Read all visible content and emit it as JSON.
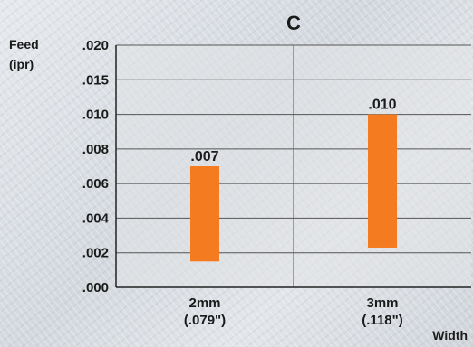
{
  "chart_data": {
    "type": "bar",
    "subtype": "floating-range",
    "title": "C",
    "ylabel": [
      "Feed",
      "(ipr)"
    ],
    "xlabel": "Width",
    "y_ticks": [
      ".000",
      ".002",
      ".004",
      ".006",
      ".008",
      ".010",
      ".015",
      ".020"
    ],
    "categories": [
      {
        "lines": [
          "2mm",
          "(.079\")"
        ]
      },
      {
        "lines": [
          "3mm",
          "(.118\")"
        ]
      }
    ],
    "series": [
      {
        "ranges": [
          {
            "low": 0.0015,
            "high": 0.007,
            "label": ".007"
          },
          {
            "low": 0.0023,
            "high": 0.01,
            "label": ".010"
          }
        ]
      }
    ],
    "grid": true,
    "colors": {
      "bar": "#f47b20",
      "grid": "#555555",
      "plot_bg": "#e1e3e6",
      "text": "#1a1a1a"
    }
  }
}
